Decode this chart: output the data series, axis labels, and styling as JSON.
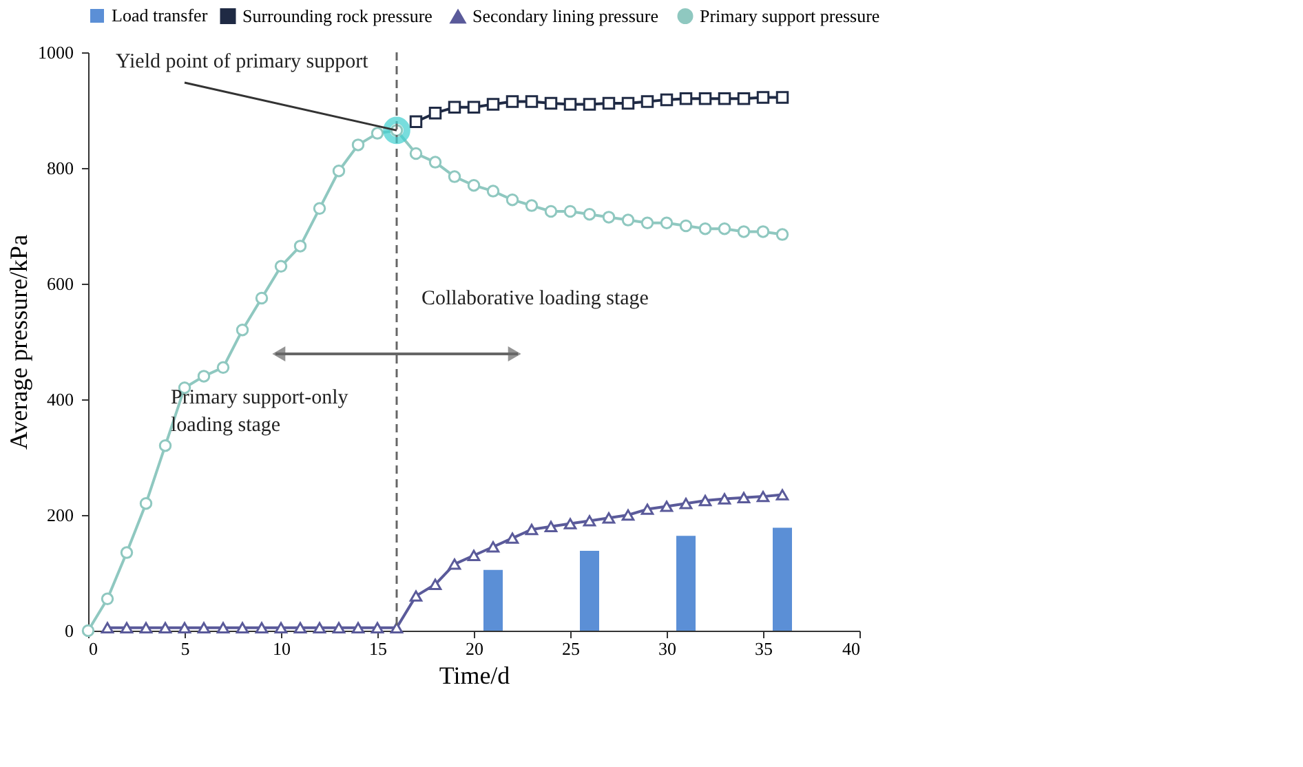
{
  "chart_data": {
    "type": "line",
    "xlabel": "Time/d",
    "ylabel": "Average pressure/kPa",
    "xlim": [
      0,
      40
    ],
    "xticks": [
      0,
      5,
      10,
      15,
      20,
      25,
      30,
      35,
      40
    ],
    "ylim": [
      0,
      1000
    ],
    "yticks": [
      0,
      200,
      400,
      600,
      800,
      1000
    ],
    "grid": false,
    "legend": "top",
    "line_style": "solid",
    "series": [
      {
        "name": "Surrounding rock pressure",
        "color": "#1f2a44",
        "marker": "square",
        "x": [
          17,
          18,
          19,
          20,
          21,
          22,
          23,
          24,
          25,
          26,
          27,
          28,
          29,
          30,
          31,
          32,
          33,
          34,
          35,
          36
        ],
        "values": [
          880,
          895,
          905,
          905,
          910,
          915,
          915,
          912,
          910,
          910,
          912,
          912,
          915,
          918,
          920,
          920,
          920,
          920,
          922,
          922
        ]
      },
      {
        "name": "Secondary lining pressure",
        "color": "#5a5a9a",
        "marker": "triangle",
        "x": [
          1,
          2,
          3,
          4,
          5,
          6,
          7,
          8,
          9,
          10,
          11,
          12,
          13,
          14,
          15,
          16,
          17,
          18,
          19,
          20,
          21,
          22,
          23,
          24,
          25,
          26,
          27,
          28,
          29,
          30,
          31,
          32,
          33,
          34,
          35,
          36
        ],
        "values": [
          5,
          5,
          5,
          5,
          5,
          5,
          5,
          5,
          5,
          5,
          5,
          5,
          5,
          5,
          5,
          5,
          60,
          80,
          115,
          130,
          145,
          160,
          175,
          180,
          185,
          190,
          195,
          200,
          210,
          215,
          220,
          225,
          228,
          230,
          232,
          235
        ]
      },
      {
        "name": "Primary support pressure",
        "color": "#8fc8c0",
        "marker": "circle",
        "x": [
          0,
          1,
          2,
          3,
          4,
          5,
          6,
          7,
          8,
          9,
          10,
          11,
          12,
          13,
          14,
          15,
          16,
          17,
          18,
          19,
          20,
          21,
          22,
          23,
          24,
          25,
          26,
          27,
          28,
          29,
          30,
          31,
          32,
          33,
          34,
          35,
          36
        ],
        "values": [
          0,
          55,
          135,
          220,
          320,
          420,
          440,
          455,
          520,
          575,
          630,
          665,
          730,
          795,
          840,
          860,
          865,
          825,
          810,
          785,
          770,
          760,
          745,
          735,
          725,
          725,
          720,
          715,
          710,
          705,
          705,
          700,
          695,
          695,
          690,
          690,
          685
        ]
      },
      {
        "name": "Load transfer",
        "type": "bar",
        "color": "#5b8fd6",
        "x": [
          21,
          26,
          31,
          36
        ],
        "values": [
          105,
          138,
          164,
          178
        ]
      }
    ],
    "ref_lines": [
      {
        "axis": "x",
        "value": 16,
        "label": null,
        "color": "#666666",
        "line_style": "dashed"
      }
    ],
    "annotations": [
      {
        "text": "Yield point of primary support",
        "x": 16,
        "y": 865
      },
      "Collaborative loading stage",
      "Primary support-only loading stage"
    ]
  }
}
